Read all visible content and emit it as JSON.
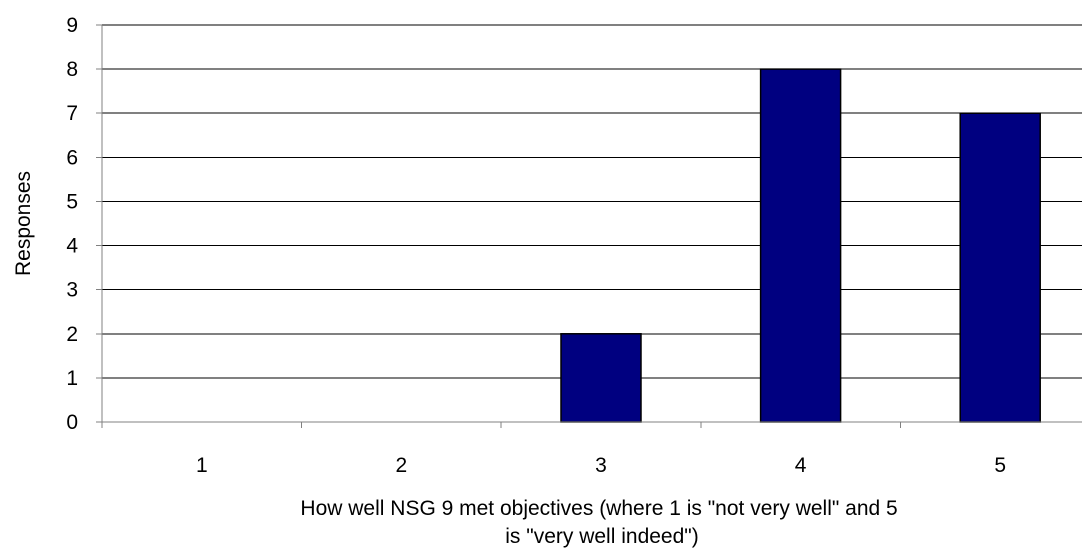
{
  "chart_data": {
    "type": "bar",
    "title": "",
    "categories": [
      "1",
      "2",
      "3",
      "4",
      "5"
    ],
    "values": [
      0,
      0,
      2,
      8,
      7
    ],
    "ylabel": "Responses",
    "xlabel_lines": [
      "How well NSG 9 met objectives (where 1 is \"not very well\" and 5",
      "is \"very well indeed\")"
    ],
    "ylim": [
      0,
      9
    ],
    "yticks": [
      "0",
      "1",
      "2",
      "3",
      "4",
      "5",
      "6",
      "7",
      "8",
      "9"
    ],
    "grid": "horizontal",
    "legend": "none",
    "colors": {
      "bar_fill": "#000080",
      "bar_stroke": "#000000",
      "grid": "#000000",
      "axis": "#808080"
    }
  }
}
